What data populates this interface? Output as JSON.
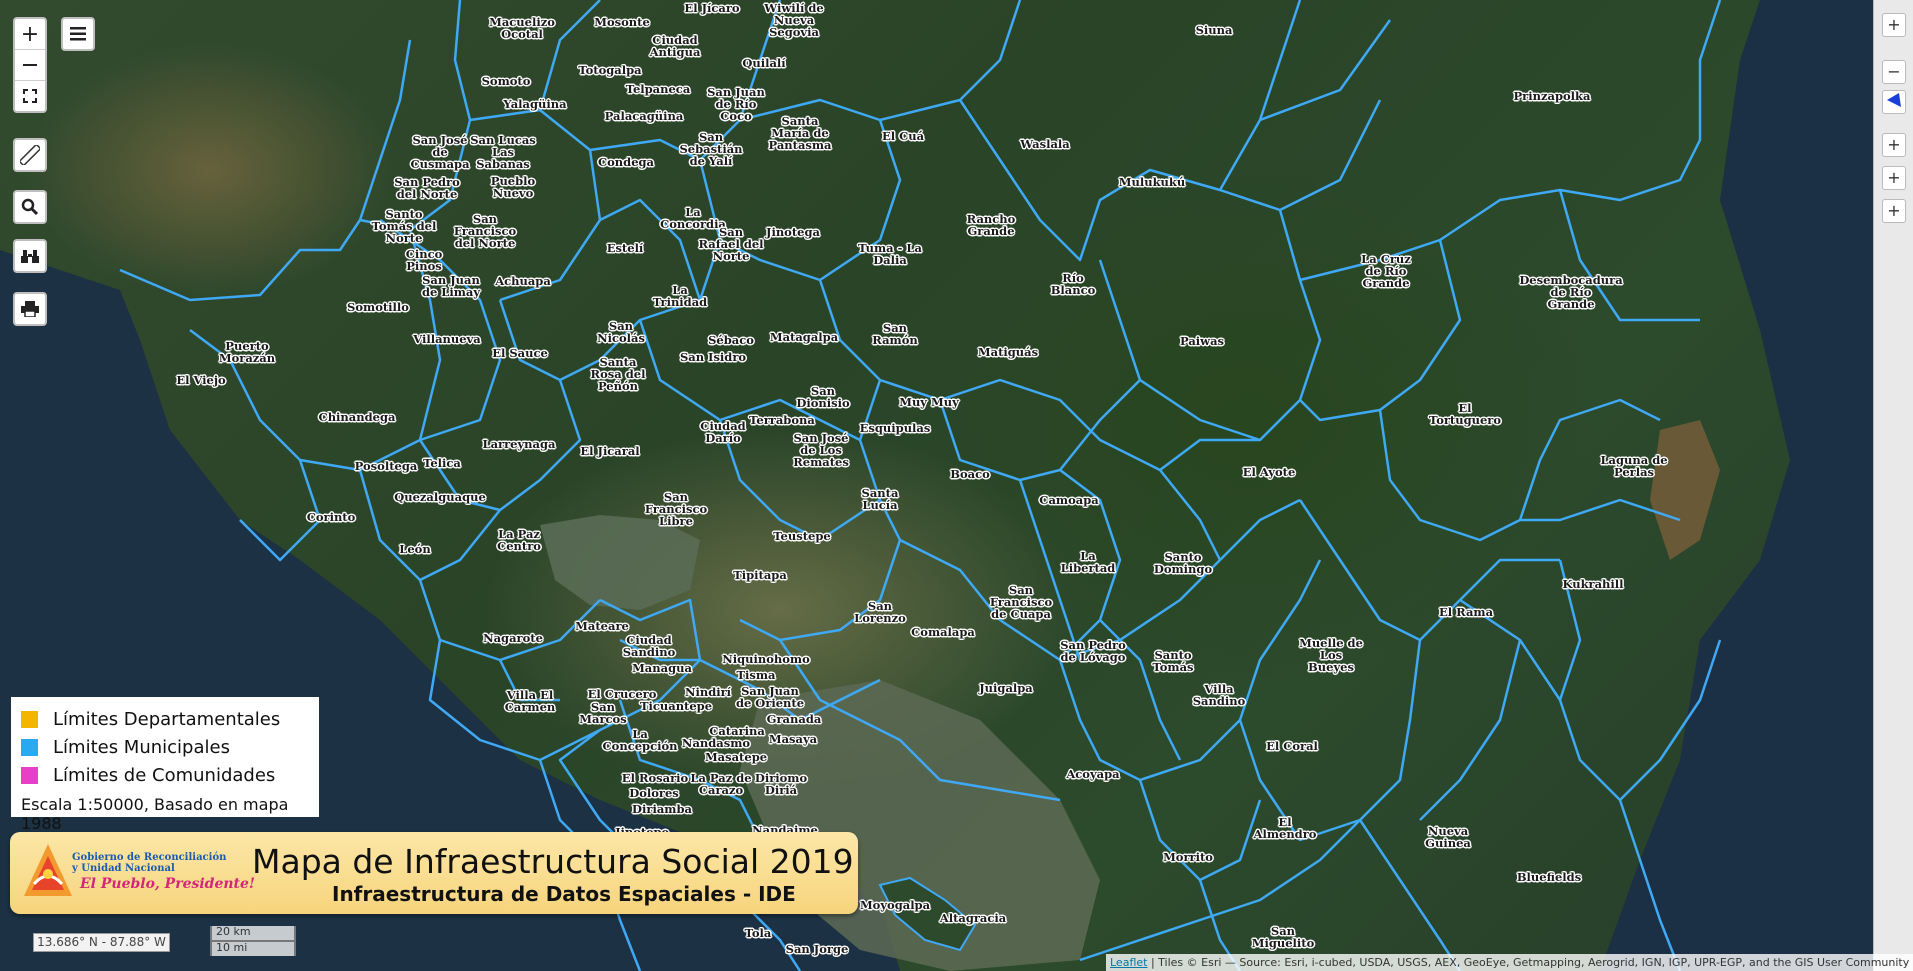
{
  "map": {
    "boundary_color": "#3fa9f5",
    "labels": [
      {
        "id": "macuelizo",
        "text": "Macuelizo\nOcotal"
      },
      {
        "id": "mosonte",
        "text": "Mosonte"
      },
      {
        "id": "jicaro",
        "text": "El Jícaro"
      },
      {
        "id": "wiwili",
        "text": "Wiwilí de\nNueva\nSegovia"
      },
      {
        "id": "ciudad-antigua",
        "text": "Ciudad\nAntigua"
      },
      {
        "id": "siuna",
        "text": "Siuna"
      },
      {
        "id": "somoto",
        "text": "Somoto"
      },
      {
        "id": "totogalpa",
        "text": "Totogalpa"
      },
      {
        "id": "quilali",
        "text": "Quilalí"
      },
      {
        "id": "telpaneca",
        "text": "Telpaneca"
      },
      {
        "id": "san-juan-rio-coco",
        "text": "San Juan\nde Río\nCoco"
      },
      {
        "id": "yalaguina",
        "text": "Yalagüina"
      },
      {
        "id": "palacaguina",
        "text": "Palacagüina"
      },
      {
        "id": "prinzapolka",
        "text": "Prinzapolka"
      },
      {
        "id": "santa-maria-pantasma",
        "text": "Santa\nMaría de\nPantasma"
      },
      {
        "id": "el-cua",
        "text": "El Cuá"
      },
      {
        "id": "san-jose-cusmapa",
        "text": "San José\nde\nCusmapa"
      },
      {
        "id": "las-sabanas",
        "text": "San Lucas\nLas\nSabanas"
      },
      {
        "id": "san-sebastian-yali",
        "text": "San\nSebastián\nde Yalí"
      },
      {
        "id": "condega",
        "text": "Condega"
      },
      {
        "id": "waslala",
        "text": "Waslala"
      },
      {
        "id": "san-pedro-norte",
        "text": "San Pedro\ndel Norte"
      },
      {
        "id": "pueblo-nuevo",
        "text": "Pueblo\nNuevo"
      },
      {
        "id": "mulukuku",
        "text": "Mulukukú"
      },
      {
        "id": "santo-tomas-norte",
        "text": "Santo\nTomás del\nNorte"
      },
      {
        "id": "san-francisco-norte",
        "text": "San\nFrancisco\ndel Norte"
      },
      {
        "id": "la-concordia",
        "text": "La\nConcordia"
      },
      {
        "id": "jinotega",
        "text": "Jinotega"
      },
      {
        "id": "rancho-grande",
        "text": "Rancho\nGrande"
      },
      {
        "id": "esteli",
        "text": "Estelí"
      },
      {
        "id": "san-rafael-norte",
        "text": "San\nRafael del\nNorte"
      },
      {
        "id": "tuma-la-dalia",
        "text": "Tuma - La\nDalia"
      },
      {
        "id": "cinco-pinos",
        "text": "Cinco\nPinos"
      },
      {
        "id": "san-juan-limay",
        "text": "San Juan\nde Limay"
      },
      {
        "id": "achuapa",
        "text": "Achuapa"
      },
      {
        "id": "la-cruz-rio-grande",
        "text": "La Cruz\nde Río\nGrande"
      },
      {
        "id": "desembocadura-rio-grande",
        "text": "Desembocadura\nde Río\nGrande"
      },
      {
        "id": "rio-blanco",
        "text": "Río\nBlanco"
      },
      {
        "id": "la-trinidad",
        "text": "La\nTrinidad"
      },
      {
        "id": "somotillo",
        "text": "Somotillo"
      },
      {
        "id": "san-nicolas",
        "text": "San\nNicolás"
      },
      {
        "id": "villanueva",
        "text": "Villanueva"
      },
      {
        "id": "sebaco",
        "text": "Sébaco"
      },
      {
        "id": "matagalpa",
        "text": "Matagalpa"
      },
      {
        "id": "san-ramon",
        "text": "San\nRamón"
      },
      {
        "id": "paiwas",
        "text": "Paiwas"
      },
      {
        "id": "puerto-morazan",
        "text": "Puerto\nMorazán"
      },
      {
        "id": "el-sauce",
        "text": "El Sauce"
      },
      {
        "id": "san-isidro",
        "text": "San Isidro"
      },
      {
        "id": "matiguas",
        "text": "Matiguás"
      },
      {
        "id": "santa-rosa-penon",
        "text": "Santa\nRosa del\nPeñón"
      },
      {
        "id": "el-viejo",
        "text": "El Viejo"
      },
      {
        "id": "san-dionisio",
        "text": "San\nDionisio"
      },
      {
        "id": "muy-muy",
        "text": "Muy Muy"
      },
      {
        "id": "el-tortuguero",
        "text": "El\nTortuguero"
      },
      {
        "id": "chinandega",
        "text": "Chinandega"
      },
      {
        "id": "terrabona",
        "text": "Terrabona"
      },
      {
        "id": "ciudad-dario",
        "text": "Ciudad\nDarío"
      },
      {
        "id": "esquipulas",
        "text": "Esquipulas"
      },
      {
        "id": "san-jose-remates",
        "text": "San José\nde Los\nRemates"
      },
      {
        "id": "larreynaga",
        "text": "Larreynaga"
      },
      {
        "id": "el-jicaral",
        "text": "El Jicaral"
      },
      {
        "id": "laguna-perlas",
        "text": "Laguna de\nPerlas"
      },
      {
        "id": "posoltega",
        "text": "Posoltega"
      },
      {
        "id": "telica",
        "text": "Telica"
      },
      {
        "id": "el-ayote",
        "text": "El Ayote"
      },
      {
        "id": "boaco",
        "text": "Boaco"
      },
      {
        "id": "quezalguaque",
        "text": "Quezalguaque"
      },
      {
        "id": "camoapa",
        "text": "Camoapa"
      },
      {
        "id": "santa-lucia",
        "text": "Santa\nLucía"
      },
      {
        "id": "san-francisco-libre",
        "text": "San\nFrancisco\nLibre"
      },
      {
        "id": "corinto",
        "text": "Corinto"
      },
      {
        "id": "la-paz-centro",
        "text": "La Paz\nCentro"
      },
      {
        "id": "teustepe",
        "text": "Teustepe"
      },
      {
        "id": "leon",
        "text": "León"
      },
      {
        "id": "la-libertad",
        "text": "La\nLibertad"
      },
      {
        "id": "santo-domingo",
        "text": "Santo\nDomingo"
      },
      {
        "id": "tipitapa",
        "text": "Tipitapa"
      },
      {
        "id": "kukrahill",
        "text": "Kukrahill"
      },
      {
        "id": "san-francisco-cuapa",
        "text": "San\nFrancisco\nde Cuapa"
      },
      {
        "id": "san-lorenzo",
        "text": "San\nLorenzo"
      },
      {
        "id": "el-rama",
        "text": "El Rama"
      },
      {
        "id": "mateare",
        "text": "Mateare"
      },
      {
        "id": "comalapa",
        "text": "Comalapa"
      },
      {
        "id": "nagarote",
        "text": "Nagarote"
      },
      {
        "id": "ciudad-sandino",
        "text": "Ciudad\nSandino"
      },
      {
        "id": "muelle-bueyes",
        "text": "Muelle de\nLos\nBueyes"
      },
      {
        "id": "san-pedro-lovago",
        "text": "San Pedro\nde Lóvago"
      },
      {
        "id": "managua",
        "text": "Managua"
      },
      {
        "id": "santo-tomas",
        "text": "Santo\nTomás"
      },
      {
        "id": "niquinohomo",
        "text": "Niquinohomo"
      },
      {
        "id": "tisma",
        "text": "Tisma"
      },
      {
        "id": "villa-sandino",
        "text": "Villa\nSandino"
      },
      {
        "id": "juigalpa",
        "text": "Juigalpa"
      },
      {
        "id": "nindiri",
        "text": "Nindirí"
      },
      {
        "id": "san-juan-oriente",
        "text": "San Juan\nde Oriente"
      },
      {
        "id": "villa-el-carmen",
        "text": "Villa El\nCarmen"
      },
      {
        "id": "el-crucero",
        "text": "El Crucero"
      },
      {
        "id": "ticuantepe",
        "text": "Ticuantepe"
      },
      {
        "id": "san-marcos",
        "text": "San\nMarcos"
      },
      {
        "id": "granada",
        "text": "Granada"
      },
      {
        "id": "catarina",
        "text": "Catarina"
      },
      {
        "id": "masaya",
        "text": "Masaya"
      },
      {
        "id": "la-concepcion",
        "text": "La\nConcepción"
      },
      {
        "id": "nandasmo",
        "text": "Nandasmo"
      },
      {
        "id": "el-coral",
        "text": "El Coral"
      },
      {
        "id": "masatepe",
        "text": "Masatepe"
      },
      {
        "id": "acoyapa",
        "text": "Acoyapa"
      },
      {
        "id": "el-rosario",
        "text": "El Rosario"
      },
      {
        "id": "dolores",
        "text": "Dolores"
      },
      {
        "id": "la-paz-carazo",
        "text": "La Paz de\nCarazo"
      },
      {
        "id": "diriomo",
        "text": "Diriomo\nDiriá"
      },
      {
        "id": "diriamba",
        "text": "Diriamba"
      },
      {
        "id": "el-almendro",
        "text": "El\nAlmendro"
      },
      {
        "id": "nueva-guinea",
        "text": "Nueva\nGuinea"
      },
      {
        "id": "jinotepe",
        "text": "Jinotepe"
      },
      {
        "id": "nandaime",
        "text": "Nandaime"
      },
      {
        "id": "morrito",
        "text": "Morrito"
      },
      {
        "id": "bluefields",
        "text": "Bluefields"
      },
      {
        "id": "moyogalpa",
        "text": "Moyogalpa"
      },
      {
        "id": "altagracia",
        "text": "Altagracia"
      },
      {
        "id": "tola",
        "text": "Tola"
      },
      {
        "id": "san-jorge",
        "text": "San Jorge"
      },
      {
        "id": "san-miguelito",
        "text": "San\nMiguelito"
      }
    ]
  },
  "controls": {
    "zoom_in": "+",
    "zoom_out": "—",
    "menu_icon": "hamburger-menu-icon",
    "fullscreen_icon": "fullscreen-icon",
    "measure_icon": "ruler-icon",
    "search_icon": "search-icon",
    "locate_icon": "binoculars-icon",
    "print_icon": "printer-icon"
  },
  "right_panel": {
    "buttons": [
      "+",
      "−",
      "+",
      "+",
      "+"
    ],
    "layer_icon": "layer-indicator-icon"
  },
  "legend": {
    "items": [
      {
        "label": "Límites Departamentales",
        "color": "#f4b400"
      },
      {
        "label": "Límites Municipales",
        "color": "#29a9f0"
      },
      {
        "label": "Límites de Comunidades",
        "color": "#e83fc8"
      }
    ],
    "scale_note": "Escala 1:50000, Basado en mapa 1988"
  },
  "banner": {
    "title": "Mapa de Infraestructura Social 2019",
    "subtitle": "Infraestructura de Datos Espaciales - IDE",
    "org": "Gobierno de Reconciliación\ny Unidad Nacional",
    "slogan": "El Pueblo, Presidente!"
  },
  "coords": "13.686° N - 87.88° W",
  "scalebar": {
    "metric": "20 km",
    "imperial": "10 mi"
  },
  "attribution": {
    "link": "Leaflet",
    "text": " | Tiles © Esri — Source: Esri, i-cubed, USDA, USGS, AEX, GeoEye, Getmapping, Aerogrid, IGN, IGP, UPR-EGP, and the GIS User Community"
  }
}
